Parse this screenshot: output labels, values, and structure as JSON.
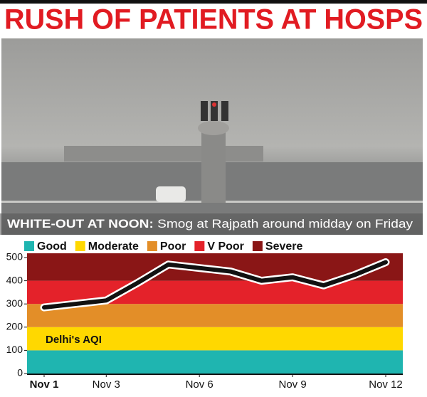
{
  "header": {
    "title": "RUSH OF PATIENTS AT HOSPS"
  },
  "caption": {
    "label": "WHITE-OUT AT NOON:",
    "text": " Smog at Rajpath around midday on Friday"
  },
  "chart_data": {
    "type": "line",
    "annotation": "Delhi's AQI",
    "categories": [
      "Nov 1",
      null,
      "Nov 3",
      null,
      null,
      "Nov 6",
      null,
      null,
      "Nov 9",
      null,
      null,
      "Nov 12"
    ],
    "values": [
      285,
      300,
      315,
      390,
      470,
      455,
      440,
      400,
      415,
      380,
      425,
      480
    ],
    "color": "#111111",
    "ylim": [
      0,
      500
    ],
    "yticks": [
      0,
      100,
      200,
      300,
      400,
      500
    ],
    "bands": [
      {
        "name": "Good",
        "color": "#1fb5b0",
        "range": [
          0,
          100
        ]
      },
      {
        "name": "Moderate",
        "color": "#ffd800",
        "range": [
          100,
          200
        ]
      },
      {
        "name": "Poor",
        "color": "#e38e28",
        "range": [
          200,
          300
        ]
      },
      {
        "name": "V Poor",
        "color": "#e4222a",
        "range": [
          300,
          400
        ]
      },
      {
        "name": "Severe",
        "color": "#8a1616",
        "range": [
          400,
          500
        ]
      }
    ]
  }
}
